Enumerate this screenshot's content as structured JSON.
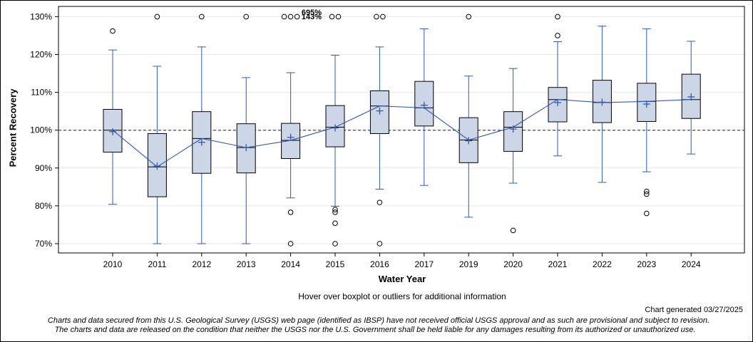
{
  "chart_data": {
    "type": "boxplot",
    "ylabel": "Percent Recovery",
    "xlabel": "Water Year",
    "ylim": [
      68,
      131
    ],
    "y_ticks": [
      70,
      80,
      90,
      100,
      110,
      120,
      130
    ],
    "y_tick_labels": [
      "70%",
      "80%",
      "90%",
      "100%",
      "110%",
      "120%",
      "130%"
    ],
    "reference_line": 100,
    "grid": true,
    "categories": [
      "2010",
      "2011",
      "2012",
      "2013",
      "2014",
      "2015",
      "2016",
      "2017",
      "2019",
      "2020",
      "2021",
      "2022",
      "2023",
      "2024"
    ],
    "boxes": [
      {
        "year": "2010",
        "min": 80.4,
        "q1": 94.2,
        "median": 100.0,
        "q3": 105.5,
        "max": 121.2,
        "mean": 99.6,
        "outliers": [
          126.2
        ]
      },
      {
        "year": "2011",
        "min": 70.0,
        "q1": 82.4,
        "median": 90.3,
        "q3": 99.1,
        "max": 116.9,
        "mean": 90.5,
        "outliers": [
          130.0
        ]
      },
      {
        "year": "2012",
        "min": 70.0,
        "q1": 88.6,
        "median": 97.8,
        "q3": 104.9,
        "max": 122.0,
        "mean": 96.8,
        "outliers": [
          130.0
        ]
      },
      {
        "year": "2013",
        "min": 70.0,
        "q1": 88.7,
        "median": 95.4,
        "q3": 101.7,
        "max": 113.9,
        "mean": 95.4,
        "outliers": [
          130.0
        ]
      },
      {
        "year": "2014",
        "min": 82.1,
        "q1": 92.5,
        "median": 97.3,
        "q3": 101.8,
        "max": 115.2,
        "mean": 98.1,
        "outliers": [
          78.3,
          70.0,
          130.0,
          130.0,
          130.0
        ]
      },
      {
        "year": "2015",
        "min": 79.9,
        "q1": 95.6,
        "median": 100.8,
        "q3": 106.5,
        "max": 119.8,
        "mean": 100.6,
        "outliers": [
          79.0,
          78.3,
          75.4,
          70.0,
          130.0,
          130.0
        ]
      },
      {
        "year": "2016",
        "min": 84.4,
        "q1": 99.1,
        "median": 106.4,
        "q3": 110.4,
        "max": 122.0,
        "mean": 105.1,
        "outliers": [
          80.9,
          70.0,
          130.0,
          130.0
        ]
      },
      {
        "year": "2017",
        "min": 85.4,
        "q1": 101.1,
        "median": 105.9,
        "q3": 112.9,
        "max": 126.8,
        "mean": 106.6,
        "outliers": []
      },
      {
        "year": "2019",
        "min": 77.0,
        "q1": 91.4,
        "median": 97.4,
        "q3": 103.3,
        "max": 114.3,
        "mean": 97.2,
        "outliers": [
          130.0
        ]
      },
      {
        "year": "2020",
        "min": 86.0,
        "q1": 94.4,
        "median": 100.8,
        "q3": 104.9,
        "max": 116.3,
        "mean": 100.3,
        "outliers": [
          73.5
        ]
      },
      {
        "year": "2021",
        "min": 93.2,
        "q1": 102.2,
        "median": 108.1,
        "q3": 111.3,
        "max": 123.4,
        "mean": 107.3,
        "outliers": [
          125.0,
          130.0
        ]
      },
      {
        "year": "2022",
        "min": 86.2,
        "q1": 102.0,
        "median": 107.3,
        "q3": 113.2,
        "max": 127.5,
        "mean": 107.4,
        "outliers": []
      },
      {
        "year": "2023",
        "min": 89.0,
        "q1": 102.3,
        "median": 107.6,
        "q3": 112.4,
        "max": 126.8,
        "mean": 106.9,
        "outliers": [
          83.8,
          83.1,
          78.0
        ]
      },
      {
        "year": "2024",
        "min": 93.7,
        "q1": 103.1,
        "median": 108.1,
        "q3": 114.8,
        "max": 123.5,
        "mean": 108.8,
        "outliers": []
      }
    ],
    "annotations": [
      "695%",
      "143%"
    ]
  },
  "hover_text": "Hover over boxplot or outliers for additional information",
  "generated": "Chart generated 03/27/2025",
  "disclaimer_1": "Charts and data secured from this U.S. Geological Survey (USGS) web page (identified as IBSP) have not received official USGS approval and as such are provisional and subject to revision.",
  "disclaimer_2": "The charts and data are released on the condition that neither the USGS nor the U.S. Government shall be held liable for any damages resulting from its authorized or unauthorized use.",
  "colors": {
    "box_fill": "#cdd6e6",
    "whisker": "#2f59b5",
    "mean_line": "#2f59b5",
    "grid": "#e6e6e6",
    "reference": "#666666"
  }
}
